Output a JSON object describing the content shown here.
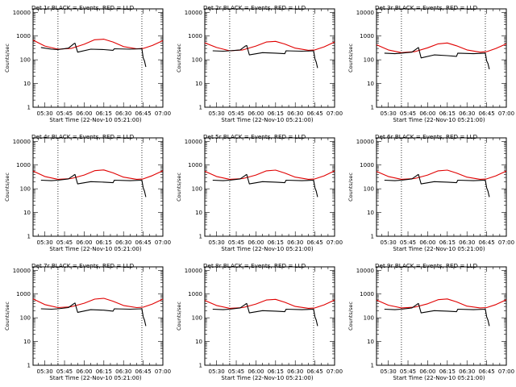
{
  "chart_data": [
    {
      "type": "line",
      "title": "Det 1r BLACK = Events, RED = LLD",
      "xlabel": "Start Time (22-Nov-10 05:21:00)",
      "ylabel": "Counts/sec",
      "x_tick_labels": [
        "05:30",
        "05:45",
        "06:00",
        "06:15",
        "06:30",
        "06:45",
        "07:00"
      ],
      "y_tick_labels": [
        "1",
        "10",
        "100",
        "1000",
        "10000"
      ],
      "y_scale": "log",
      "ylim": [
        1,
        14000
      ],
      "xlim": [
        "05:21",
        "07:00"
      ],
      "vertical_lines": [
        "05:40",
        "06:44"
      ],
      "series": [
        {
          "color": "#e00000",
          "x": [
            "05:21",
            "05:30",
            "05:40",
            "05:50",
            "06:00",
            "06:08",
            "06:15",
            "06:22",
            "06:30",
            "06:40",
            "06:45",
            "06:52",
            "07:00"
          ],
          "values": [
            680,
            380,
            280,
            300,
            450,
            700,
            740,
            560,
            360,
            290,
            300,
            400,
            640
          ]
        },
        {
          "color": "#000000",
          "x": [
            "05:27",
            "05:35",
            "05:40",
            "05:48",
            "05:52",
            "05:53",
            "05:55",
            "06:05",
            "06:15",
            "06:22",
            "06:23",
            "06:35",
            "06:44",
            "06:45",
            "06:46",
            "06:47"
          ],
          "values": [
            330,
            280,
            270,
            310,
            470,
            500,
            210,
            280,
            270,
            250,
            290,
            280,
            290,
            120,
            90,
            50
          ]
        }
      ]
    },
    {
      "type": "line",
      "title": "Det 2r BLACK = Events, RED = LLD",
      "xlabel": "Start Time (22-Nov-10 05:21:00)",
      "ylabel": "Counts/sec",
      "x_tick_labels": [
        "05:30",
        "05:45",
        "06:00",
        "06:15",
        "06:30",
        "06:45",
        "07:00"
      ],
      "y_tick_labels": [
        "1",
        "10",
        "100",
        "1000",
        "10000"
      ],
      "y_scale": "log",
      "ylim": [
        1,
        14000
      ],
      "xlim": [
        "05:21",
        "07:00"
      ],
      "vertical_lines": [
        "05:40",
        "06:44"
      ],
      "series": [
        {
          "color": "#e00000",
          "x": [
            "05:21",
            "05:30",
            "05:40",
            "05:50",
            "06:00",
            "06:08",
            "06:15",
            "06:22",
            "06:30",
            "06:40",
            "06:45",
            "06:52",
            "07:00"
          ],
          "values": [
            520,
            330,
            240,
            260,
            380,
            560,
            600,
            460,
            310,
            250,
            260,
            350,
            560
          ]
        },
        {
          "color": "#000000",
          "x": [
            "05:27",
            "05:35",
            "05:40",
            "05:48",
            "05:52",
            "05:53",
            "05:55",
            "06:05",
            "06:15",
            "06:22",
            "06:23",
            "06:35",
            "06:44",
            "06:45",
            "06:46",
            "06:47"
          ],
          "values": [
            240,
            230,
            240,
            260,
            380,
            400,
            160,
            200,
            190,
            180,
            240,
            230,
            240,
            110,
            80,
            45
          ]
        }
      ]
    },
    {
      "type": "line",
      "title": "Det 3r BLACK = Events, RED = LLD",
      "xlabel": "Start Time (22-Nov-10 05:21:00)",
      "ylabel": "Counts/sec",
      "x_tick_labels": [
        "05:30",
        "05:45",
        "06:00",
        "06:15",
        "06:30",
        "06:45",
        "07:00"
      ],
      "y_tick_labels": [
        "1",
        "10",
        "100",
        "1000",
        "10000"
      ],
      "y_scale": "log",
      "ylim": [
        1,
        14000
      ],
      "xlim": [
        "05:21",
        "07:00"
      ],
      "vertical_lines": [
        "05:40",
        "06:44"
      ],
      "series": [
        {
          "color": "#e00000",
          "x": [
            "05:21",
            "05:30",
            "05:40",
            "05:50",
            "06:00",
            "06:08",
            "06:15",
            "06:22",
            "06:30",
            "06:40",
            "06:45",
            "06:52",
            "07:00"
          ],
          "values": [
            430,
            260,
            200,
            220,
            320,
            470,
            510,
            390,
            260,
            210,
            220,
            300,
            470
          ]
        },
        {
          "color": "#000000",
          "x": [
            "05:27",
            "05:35",
            "05:40",
            "05:48",
            "05:52",
            "05:53",
            "05:55",
            "06:05",
            "06:15",
            "06:22",
            "06:23",
            "06:35",
            "06:44",
            "06:45",
            "06:46",
            "06:47"
          ],
          "values": [
            190,
            180,
            190,
            210,
            300,
            330,
            120,
            160,
            150,
            140,
            190,
            180,
            190,
            90,
            70,
            40
          ]
        }
      ]
    },
    {
      "type": "line",
      "title": "Det 4r BLACK = Events, RED = LLD",
      "xlabel": "Start Time (22-Nov-10 05:21:00)",
      "ylabel": "Counts/sec",
      "x_tick_labels": [
        "05:30",
        "05:45",
        "06:00",
        "06:15",
        "06:30",
        "06:45",
        "07:00"
      ],
      "y_tick_labels": [
        "1",
        "10",
        "100",
        "1000",
        "10000"
      ],
      "y_scale": "log",
      "ylim": [
        1,
        14000
      ],
      "xlim": [
        "05:21",
        "07:00"
      ],
      "vertical_lines": [
        "05:40",
        "06:44"
      ],
      "series": [
        {
          "color": "#e00000",
          "x": [
            "05:21",
            "05:30",
            "05:40",
            "05:50",
            "06:00",
            "06:08",
            "06:15",
            "06:22",
            "06:30",
            "06:40",
            "06:45",
            "06:52",
            "07:00"
          ],
          "values": [
            560,
            330,
            250,
            270,
            380,
            580,
            620,
            470,
            310,
            250,
            260,
            360,
            580
          ]
        },
        {
          "color": "#000000",
          "x": [
            "05:27",
            "05:35",
            "05:40",
            "05:48",
            "05:52",
            "05:53",
            "05:55",
            "06:05",
            "06:15",
            "06:22",
            "06:23",
            "06:35",
            "06:44",
            "06:45",
            "06:46",
            "06:47"
          ],
          "values": [
            230,
            220,
            230,
            260,
            370,
            400,
            160,
            200,
            190,
            180,
            230,
            220,
            230,
            110,
            80,
            45
          ]
        }
      ]
    },
    {
      "type": "line",
      "title": "Det 5r BLACK = Events, RED = LLD",
      "xlabel": "Start Time (22-Nov-10 05:21:00)",
      "ylabel": "Counts/sec",
      "x_tick_labels": [
        "05:30",
        "05:45",
        "06:00",
        "06:15",
        "06:30",
        "06:45",
        "07:00"
      ],
      "y_tick_labels": [
        "1",
        "10",
        "100",
        "1000",
        "10000"
      ],
      "y_scale": "log",
      "ylim": [
        1,
        14000
      ],
      "xlim": [
        "05:21",
        "07:00"
      ],
      "vertical_lines": [
        "05:40",
        "06:44"
      ],
      "series": [
        {
          "color": "#e00000",
          "x": [
            "05:21",
            "05:30",
            "05:40",
            "05:50",
            "06:00",
            "06:08",
            "06:15",
            "06:22",
            "06:30",
            "06:40",
            "06:45",
            "06:52",
            "07:00"
          ],
          "values": [
            550,
            330,
            250,
            270,
            380,
            570,
            610,
            460,
            310,
            250,
            260,
            350,
            570
          ]
        },
        {
          "color": "#000000",
          "x": [
            "05:27",
            "05:35",
            "05:40",
            "05:48",
            "05:52",
            "05:53",
            "05:55",
            "06:05",
            "06:15",
            "06:22",
            "06:23",
            "06:35",
            "06:44",
            "06:45",
            "06:46",
            "06:47"
          ],
          "values": [
            230,
            220,
            230,
            260,
            370,
            400,
            160,
            200,
            190,
            180,
            230,
            220,
            230,
            110,
            80,
            45
          ]
        }
      ]
    },
    {
      "type": "line",
      "title": "Det 6r BLACK = Events, RED = LLD",
      "xlabel": "Start Time (22-Nov-10 05:21:00)",
      "ylabel": "Counts/sec",
      "x_tick_labels": [
        "05:30",
        "05:45",
        "06:00",
        "06:15",
        "06:30",
        "06:45",
        "07:00"
      ],
      "y_tick_labels": [
        "1",
        "10",
        "100",
        "1000",
        "10000"
      ],
      "y_scale": "log",
      "ylim": [
        1,
        14000
      ],
      "xlim": [
        "05:21",
        "07:00"
      ],
      "vertical_lines": [
        "05:40",
        "06:44"
      ],
      "series": [
        {
          "color": "#e00000",
          "x": [
            "05:21",
            "05:30",
            "05:40",
            "05:50",
            "06:00",
            "06:08",
            "06:15",
            "06:22",
            "06:30",
            "06:40",
            "06:45",
            "06:52",
            "07:00"
          ],
          "values": [
            540,
            330,
            250,
            270,
            380,
            570,
            610,
            460,
            310,
            250,
            260,
            350,
            560
          ]
        },
        {
          "color": "#000000",
          "x": [
            "05:27",
            "05:35",
            "05:40",
            "05:48",
            "05:52",
            "05:53",
            "05:55",
            "06:05",
            "06:15",
            "06:22",
            "06:23",
            "06:35",
            "06:44",
            "06:45",
            "06:46",
            "06:47"
          ],
          "values": [
            230,
            220,
            230,
            260,
            370,
            400,
            160,
            200,
            190,
            180,
            230,
            220,
            230,
            110,
            80,
            45
          ]
        }
      ]
    },
    {
      "type": "line",
      "title": "Det 7r BLACK = Events, RED = LLD",
      "xlabel": "Start Time (22-Nov-10 05:21:00)",
      "ylabel": "Counts/sec",
      "x_tick_labels": [
        "05:30",
        "05:45",
        "06:00",
        "06:15",
        "06:30",
        "06:45",
        "07:00"
      ],
      "y_tick_labels": [
        "1",
        "10",
        "100",
        "1000",
        "10000"
      ],
      "y_scale": "log",
      "ylim": [
        1,
        14000
      ],
      "xlim": [
        "05:21",
        "07:00"
      ],
      "vertical_lines": [
        "05:40",
        "06:44"
      ],
      "series": [
        {
          "color": "#e00000",
          "x": [
            "05:21",
            "05:30",
            "05:40",
            "05:50",
            "06:00",
            "06:08",
            "06:15",
            "06:22",
            "06:30",
            "06:40",
            "06:45",
            "06:52",
            "07:00"
          ],
          "values": [
            620,
            360,
            270,
            290,
            410,
            610,
            660,
            500,
            330,
            270,
            280,
            380,
            610
          ]
        },
        {
          "color": "#000000",
          "x": [
            "05:27",
            "05:35",
            "05:40",
            "05:48",
            "05:52",
            "05:53",
            "05:55",
            "06:05",
            "06:15",
            "06:22",
            "06:23",
            "06:35",
            "06:44",
            "06:45",
            "06:46",
            "06:47"
          ],
          "values": [
            240,
            230,
            240,
            270,
            390,
            420,
            170,
            220,
            210,
            190,
            240,
            230,
            240,
            110,
            80,
            45
          ]
        }
      ]
    },
    {
      "type": "line",
      "title": "Det 8r BLACK = Events, RED = LLD",
      "xlabel": "Start Time (22-Nov-10 05:21:00)",
      "ylabel": "Counts/sec",
      "x_tick_labels": [
        "05:30",
        "05:45",
        "06:00",
        "06:15",
        "06:30",
        "06:45",
        "07:00"
      ],
      "y_tick_labels": [
        "1",
        "10",
        "100",
        "1000",
        "10000"
      ],
      "y_scale": "log",
      "ylim": [
        1,
        14000
      ],
      "xlim": [
        "05:21",
        "07:00"
      ],
      "vertical_lines": [
        "05:40",
        "06:44"
      ],
      "series": [
        {
          "color": "#e00000",
          "x": [
            "05:21",
            "05:30",
            "05:40",
            "05:50",
            "06:00",
            "06:08",
            "06:15",
            "06:22",
            "06:30",
            "06:40",
            "06:45",
            "06:52",
            "07:00"
          ],
          "values": [
            540,
            330,
            250,
            270,
            380,
            560,
            600,
            450,
            300,
            250,
            260,
            350,
            560
          ]
        },
        {
          "color": "#000000",
          "x": [
            "05:27",
            "05:35",
            "05:40",
            "05:48",
            "05:52",
            "05:53",
            "05:55",
            "06:05",
            "06:15",
            "06:22",
            "06:23",
            "06:35",
            "06:44",
            "06:45",
            "06:46",
            "06:47"
          ],
          "values": [
            230,
            220,
            230,
            260,
            370,
            400,
            160,
            200,
            190,
            180,
            230,
            220,
            230,
            110,
            80,
            45
          ]
        }
      ]
    },
    {
      "type": "line",
      "title": "Det 9r BLACK = Events, RED = LLD",
      "xlabel": "Start Time (22-Nov-10 05:21:00)",
      "ylabel": "Counts/sec",
      "x_tick_labels": [
        "05:30",
        "05:45",
        "06:00",
        "06:15",
        "06:30",
        "06:45",
        "07:00"
      ],
      "y_tick_labels": [
        "1",
        "10",
        "100",
        "1000",
        "10000"
      ],
      "y_scale": "log",
      "ylim": [
        1,
        14000
      ],
      "xlim": [
        "05:21",
        "07:00"
      ],
      "vertical_lines": [
        "05:40",
        "06:44"
      ],
      "series": [
        {
          "color": "#e00000",
          "x": [
            "05:21",
            "05:30",
            "05:40",
            "05:50",
            "06:00",
            "06:08",
            "06:15",
            "06:22",
            "06:30",
            "06:40",
            "06:45",
            "06:52",
            "07:00"
          ],
          "values": [
            560,
            340,
            260,
            280,
            390,
            580,
            620,
            470,
            310,
            260,
            270,
            360,
            580
          ]
        },
        {
          "color": "#000000",
          "x": [
            "05:27",
            "05:35",
            "05:40",
            "05:48",
            "05:52",
            "05:53",
            "05:55",
            "06:05",
            "06:15",
            "06:22",
            "06:23",
            "06:35",
            "06:44",
            "06:45",
            "06:46",
            "06:47"
          ],
          "values": [
            230,
            220,
            230,
            260,
            370,
            400,
            160,
            200,
            190,
            180,
            230,
            220,
            230,
            110,
            80,
            45
          ]
        }
      ]
    }
  ]
}
